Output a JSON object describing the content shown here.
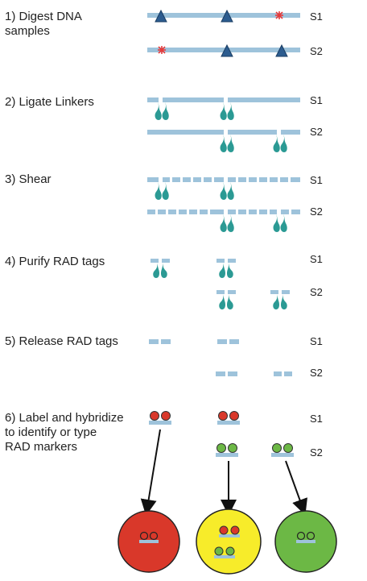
{
  "steps": [
    {
      "label": "1) Digest DNA\nsamples"
    },
    {
      "label": "2) Ligate Linkers"
    },
    {
      "label": "3) Shear"
    },
    {
      "label": "4) Purify RAD tags"
    },
    {
      "label": "5) Release RAD tags"
    },
    {
      "label": "6) Label and hybridize\nto identify or type\nRAD markers"
    }
  ],
  "sample_labels": {
    "s1": "S1",
    "s2": "S2"
  },
  "colors": {
    "dna": "#9ec3db",
    "linker": "#2b9a94",
    "site": "#2c5c8f",
    "polymorphism": "#e63b3b",
    "red_spot": "#d9382a",
    "yellow_spot": "#f7ec2a",
    "green_spot": "#6cb845"
  }
}
